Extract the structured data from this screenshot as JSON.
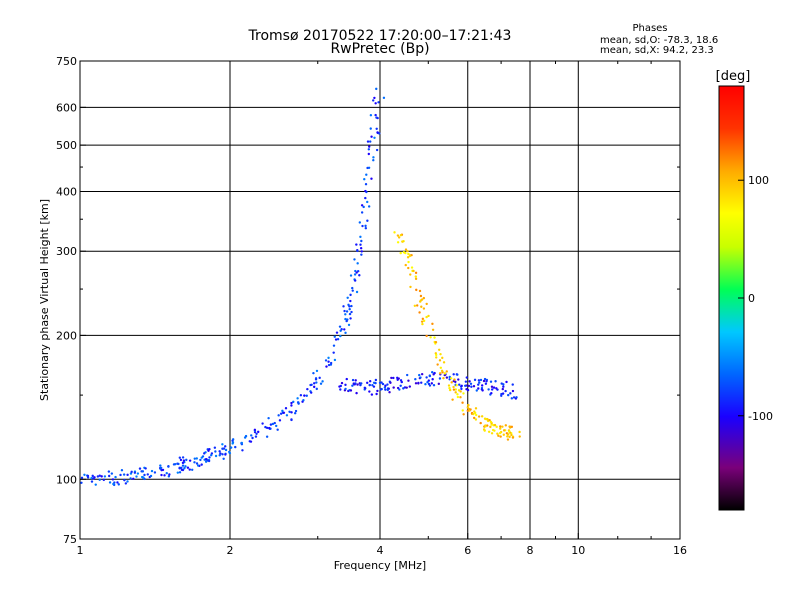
{
  "chart_data": {
    "type": "scatter",
    "title": "Tromsø 20170522 17:20:00–17:21:43",
    "subtitle": "RwPretec (Bp)",
    "xlabel": "Frequency [MHz]",
    "ylabel": "Stationary phase Virtual Height [km]",
    "x_scale": "log",
    "y_scale": "log",
    "xlim": [
      1,
      16
    ],
    "ylim": [
      75,
      750
    ],
    "x_ticks": [
      1,
      2,
      4,
      6,
      8,
      10,
      16
    ],
    "x_tick_labels": [
      "1",
      "2",
      "4",
      "6",
      "8",
      "10",
      "16"
    ],
    "x_grid": [
      2,
      4,
      6,
      8,
      10
    ],
    "y_ticks": [
      75,
      100,
      200,
      300,
      400,
      500,
      600,
      750
    ],
    "y_tick_labels": [
      "75",
      "100",
      "200",
      "300",
      "400",
      "500",
      "600",
      "750"
    ],
    "y_grid": [
      100,
      200,
      300,
      400,
      500,
      600
    ],
    "grid": true,
    "phases": {
      "header": "Phases",
      "line_o": "mean, sd,O: -78.3, 18.6",
      "line_x": "mean, sd,X:  94.2, 23.3"
    },
    "colorbar": {
      "label": "[deg]",
      "range": [
        -180,
        180
      ],
      "ticks": [
        100,
        0,
        -100
      ],
      "tick_labels": [
        "100",
        "0",
        "-100"
      ],
      "colormap": [
        "#000000",
        "#7a007a",
        "#1a00ff",
        "#0066ff",
        "#00c8ff",
        "#00ff55",
        "#c8ff00",
        "#ffff00",
        "#ffaa00",
        "#ff3300",
        "#ff0000"
      ]
    },
    "series": [
      {
        "description": "O-mode trace (bottomside, blue)",
        "phase_deg": -78,
        "x": [
          1.0,
          1.1,
          1.2,
          1.3,
          1.4,
          1.5,
          1.6,
          1.7,
          1.8,
          1.9,
          2.0,
          2.2,
          2.4,
          2.6,
          2.8,
          3.0,
          3.2,
          3.4,
          3.5,
          3.6,
          3.7,
          3.8,
          3.9,
          4.0
        ],
        "y": [
          99,
          100,
          101,
          102,
          103,
          105,
          107,
          109,
          111,
          113,
          116,
          122,
          128,
          137,
          148,
          162,
          180,
          210,
          240,
          280,
          340,
          430,
          540,
          660
        ]
      },
      {
        "description": "Lower F-region trace",
        "phase_deg": -90,
        "x": [
          3.3,
          3.5,
          3.8,
          4.0,
          4.3,
          4.6,
          5.0,
          5.4,
          5.8,
          6.2,
          6.6,
          7.0,
          7.5
        ],
        "y": [
          158,
          156,
          155,
          156,
          158,
          160,
          162,
          163,
          160,
          158,
          156,
          155,
          152
        ]
      },
      {
        "description": "X-mode trace (yellow/orange)",
        "phase_deg": 94,
        "x": [
          4.3,
          4.5,
          4.7,
          4.9,
          5.1,
          5.4,
          5.7,
          6.0,
          6.3,
          6.6,
          6.9,
          7.2,
          7.5
        ],
        "y": [
          340,
          300,
          260,
          220,
          190,
          170,
          150,
          140,
          132,
          128,
          126,
          125,
          124
        ]
      }
    ]
  }
}
